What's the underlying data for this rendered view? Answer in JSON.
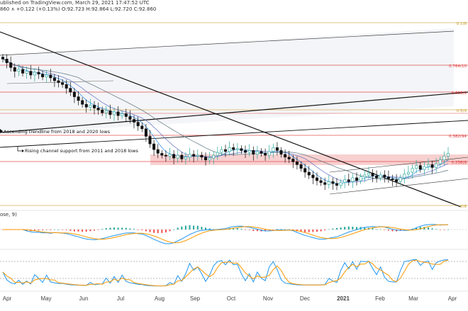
{
  "header": {
    "line1": "ublished on TradingView.com, March 29, 2021 17:47:52 UTC",
    "line2": "860 ∧ +0.122 (+0.13%) O:92.723 H:92.864 L:92.720 C:92.860"
  },
  "panels": {
    "macd_label": "ose, 9)"
  },
  "annotations": {
    "ascending": "Ascending trendline from 2018 and 2020 lows",
    "rising": "Rising channel support from 2011 and 2018 lows"
  },
  "fib_levels": [
    {
      "label": "0.1(8",
      "color": "#c8a02a"
    },
    {
      "label": "0.764(10",
      "color": "#d33"
    },
    {
      "label": "0.618(9",
      "color": "#d33"
    },
    {
      "label": "0.5(9",
      "color": "#c8a02a"
    },
    {
      "label": "0.382(94",
      "color": "#d33"
    },
    {
      "label": "0.236(9",
      "color": "#d33"
    },
    {
      "label": "0(8",
      "color": "#c8a02a"
    }
  ],
  "colors": {
    "up": "#26a69a",
    "down": "#111111",
    "macd_line": "#2196f3",
    "signal_line": "#ff9800",
    "fib_red": "#e0524f",
    "fib_gold": "#d9b25a",
    "zone": "#f8d0d0",
    "channel": "#e6e9ef"
  },
  "chart_data": {
    "type": "candlestick",
    "x_ticks": [
      "Apr",
      "May",
      "Jun",
      "Jul",
      "Aug",
      "Sep",
      "Oct",
      "Nov",
      "Dec",
      "2021",
      "Feb",
      "Mar",
      "Apr"
    ],
    "close": [
      103.2,
      102.8,
      102.3,
      101.9,
      102.1,
      101.7,
      101.9,
      101.5,
      101.8,
      101.6,
      101.3,
      101.5,
      101.2,
      100.9,
      100.7,
      100.5,
      100.1,
      99.7,
      99.2,
      98.8,
      98.4,
      98.1,
      98.3,
      98.0,
      97.8,
      97.5,
      97.7,
      97.3,
      97.6,
      97.2,
      97.4,
      97.1,
      96.8,
      96.5,
      96.1,
      95.8,
      95.0,
      94.2,
      93.6,
      93.2,
      93.0,
      92.9,
      93.1,
      92.7,
      93.0,
      92.6,
      92.8,
      93.1,
      92.9,
      93.0,
      92.8,
      92.5,
      92.7,
      93.0,
      93.3,
      93.6,
      93.4,
      93.8,
      93.6,
      93.7,
      93.5,
      93.3,
      93.5,
      93.1,
      93.4,
      93.2,
      93.0,
      93.4,
      93.8,
      93.5,
      93.1,
      92.8,
      92.6,
      92.3,
      92.0,
      91.6,
      91.2,
      90.9,
      90.6,
      90.3,
      90.1,
      89.9,
      90.2,
      90.0,
      89.8,
      90.1,
      90.4,
      90.2,
      90.6,
      90.3,
      90.7,
      90.9,
      91.1,
      90.8,
      90.6,
      90.9,
      90.7,
      90.5,
      90.4,
      90.2,
      90.6,
      91.0,
      91.2,
      91.6,
      91.9,
      91.5,
      91.8,
      92.0,
      91.7,
      92.1,
      92.5,
      92.9,
      93.2
    ]
  }
}
